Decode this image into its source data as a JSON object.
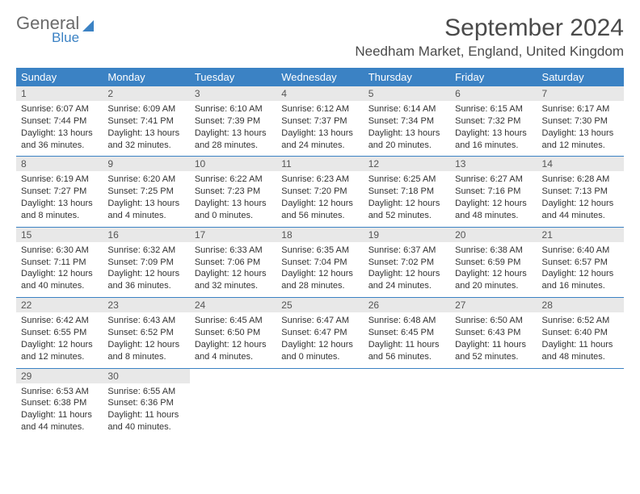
{
  "logo": {
    "text_top": "General",
    "text_bottom": "Blue"
  },
  "title": "September 2024",
  "location": "Needham Market, England, United Kingdom",
  "day_headers": [
    "Sunday",
    "Monday",
    "Tuesday",
    "Wednesday",
    "Thursday",
    "Friday",
    "Saturday"
  ],
  "colors": {
    "header_bg": "#3b82c4",
    "header_fg": "#ffffff",
    "daynum_bg": "#e8e8e8",
    "text": "#333333",
    "row_border": "#3b82c4"
  },
  "days": [
    {
      "n": "1",
      "sr": "6:07 AM",
      "ss": "7:44 PM",
      "dl": "13 hours and 36 minutes."
    },
    {
      "n": "2",
      "sr": "6:09 AM",
      "ss": "7:41 PM",
      "dl": "13 hours and 32 minutes."
    },
    {
      "n": "3",
      "sr": "6:10 AM",
      "ss": "7:39 PM",
      "dl": "13 hours and 28 minutes."
    },
    {
      "n": "4",
      "sr": "6:12 AM",
      "ss": "7:37 PM",
      "dl": "13 hours and 24 minutes."
    },
    {
      "n": "5",
      "sr": "6:14 AM",
      "ss": "7:34 PM",
      "dl": "13 hours and 20 minutes."
    },
    {
      "n": "6",
      "sr": "6:15 AM",
      "ss": "7:32 PM",
      "dl": "13 hours and 16 minutes."
    },
    {
      "n": "7",
      "sr": "6:17 AM",
      "ss": "7:30 PM",
      "dl": "13 hours and 12 minutes."
    },
    {
      "n": "8",
      "sr": "6:19 AM",
      "ss": "7:27 PM",
      "dl": "13 hours and 8 minutes."
    },
    {
      "n": "9",
      "sr": "6:20 AM",
      "ss": "7:25 PM",
      "dl": "13 hours and 4 minutes."
    },
    {
      "n": "10",
      "sr": "6:22 AM",
      "ss": "7:23 PM",
      "dl": "13 hours and 0 minutes."
    },
    {
      "n": "11",
      "sr": "6:23 AM",
      "ss": "7:20 PM",
      "dl": "12 hours and 56 minutes."
    },
    {
      "n": "12",
      "sr": "6:25 AM",
      "ss": "7:18 PM",
      "dl": "12 hours and 52 minutes."
    },
    {
      "n": "13",
      "sr": "6:27 AM",
      "ss": "7:16 PM",
      "dl": "12 hours and 48 minutes."
    },
    {
      "n": "14",
      "sr": "6:28 AM",
      "ss": "7:13 PM",
      "dl": "12 hours and 44 minutes."
    },
    {
      "n": "15",
      "sr": "6:30 AM",
      "ss": "7:11 PM",
      "dl": "12 hours and 40 minutes."
    },
    {
      "n": "16",
      "sr": "6:32 AM",
      "ss": "7:09 PM",
      "dl": "12 hours and 36 minutes."
    },
    {
      "n": "17",
      "sr": "6:33 AM",
      "ss": "7:06 PM",
      "dl": "12 hours and 32 minutes."
    },
    {
      "n": "18",
      "sr": "6:35 AM",
      "ss": "7:04 PM",
      "dl": "12 hours and 28 minutes."
    },
    {
      "n": "19",
      "sr": "6:37 AM",
      "ss": "7:02 PM",
      "dl": "12 hours and 24 minutes."
    },
    {
      "n": "20",
      "sr": "6:38 AM",
      "ss": "6:59 PM",
      "dl": "12 hours and 20 minutes."
    },
    {
      "n": "21",
      "sr": "6:40 AM",
      "ss": "6:57 PM",
      "dl": "12 hours and 16 minutes."
    },
    {
      "n": "22",
      "sr": "6:42 AM",
      "ss": "6:55 PM",
      "dl": "12 hours and 12 minutes."
    },
    {
      "n": "23",
      "sr": "6:43 AM",
      "ss": "6:52 PM",
      "dl": "12 hours and 8 minutes."
    },
    {
      "n": "24",
      "sr": "6:45 AM",
      "ss": "6:50 PM",
      "dl": "12 hours and 4 minutes."
    },
    {
      "n": "25",
      "sr": "6:47 AM",
      "ss": "6:47 PM",
      "dl": "12 hours and 0 minutes."
    },
    {
      "n": "26",
      "sr": "6:48 AM",
      "ss": "6:45 PM",
      "dl": "11 hours and 56 minutes."
    },
    {
      "n": "27",
      "sr": "6:50 AM",
      "ss": "6:43 PM",
      "dl": "11 hours and 52 minutes."
    },
    {
      "n": "28",
      "sr": "6:52 AM",
      "ss": "6:40 PM",
      "dl": "11 hours and 48 minutes."
    },
    {
      "n": "29",
      "sr": "6:53 AM",
      "ss": "6:38 PM",
      "dl": "11 hours and 44 minutes."
    },
    {
      "n": "30",
      "sr": "6:55 AM",
      "ss": "6:36 PM",
      "dl": "11 hours and 40 minutes."
    }
  ],
  "labels": {
    "sunrise": "Sunrise:",
    "sunset": "Sunset:",
    "daylight": "Daylight:"
  }
}
